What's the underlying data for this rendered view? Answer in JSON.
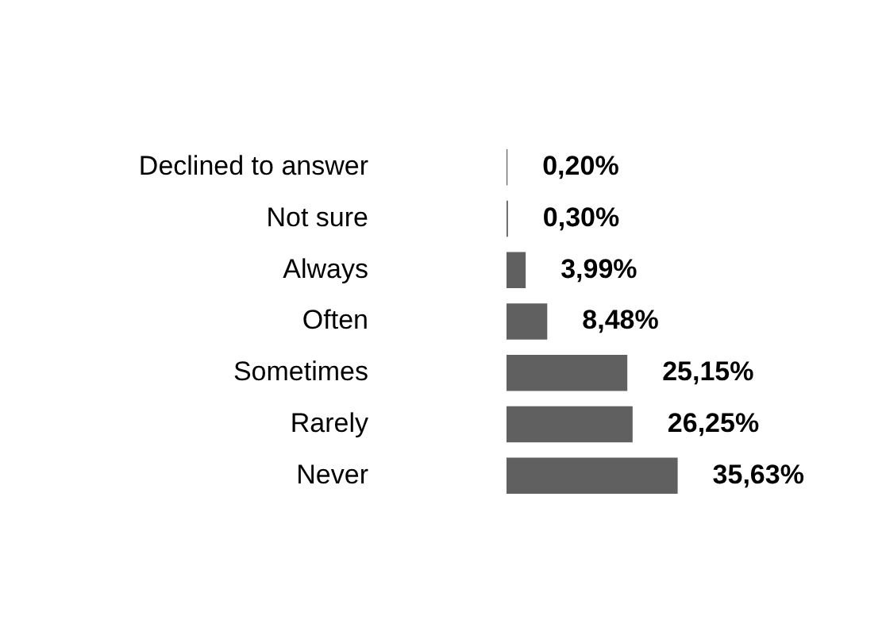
{
  "chart_data": {
    "type": "bar",
    "orientation": "horizontal",
    "tick_labels": "y",
    "categories": [
      "Declined to answer",
      "Not sure",
      "Always",
      "Often",
      "Sometimes",
      "Rarely",
      "Never"
    ],
    "values": [
      0.2,
      0.3,
      3.99,
      8.48,
      25.15,
      26.25,
      35.63
    ],
    "color": "#606060",
    "value_labels": [
      "0,20%",
      "0,30%",
      "3,99%",
      "8,48%",
      "25,15%",
      "26,25%",
      "35,63%"
    ]
  }
}
